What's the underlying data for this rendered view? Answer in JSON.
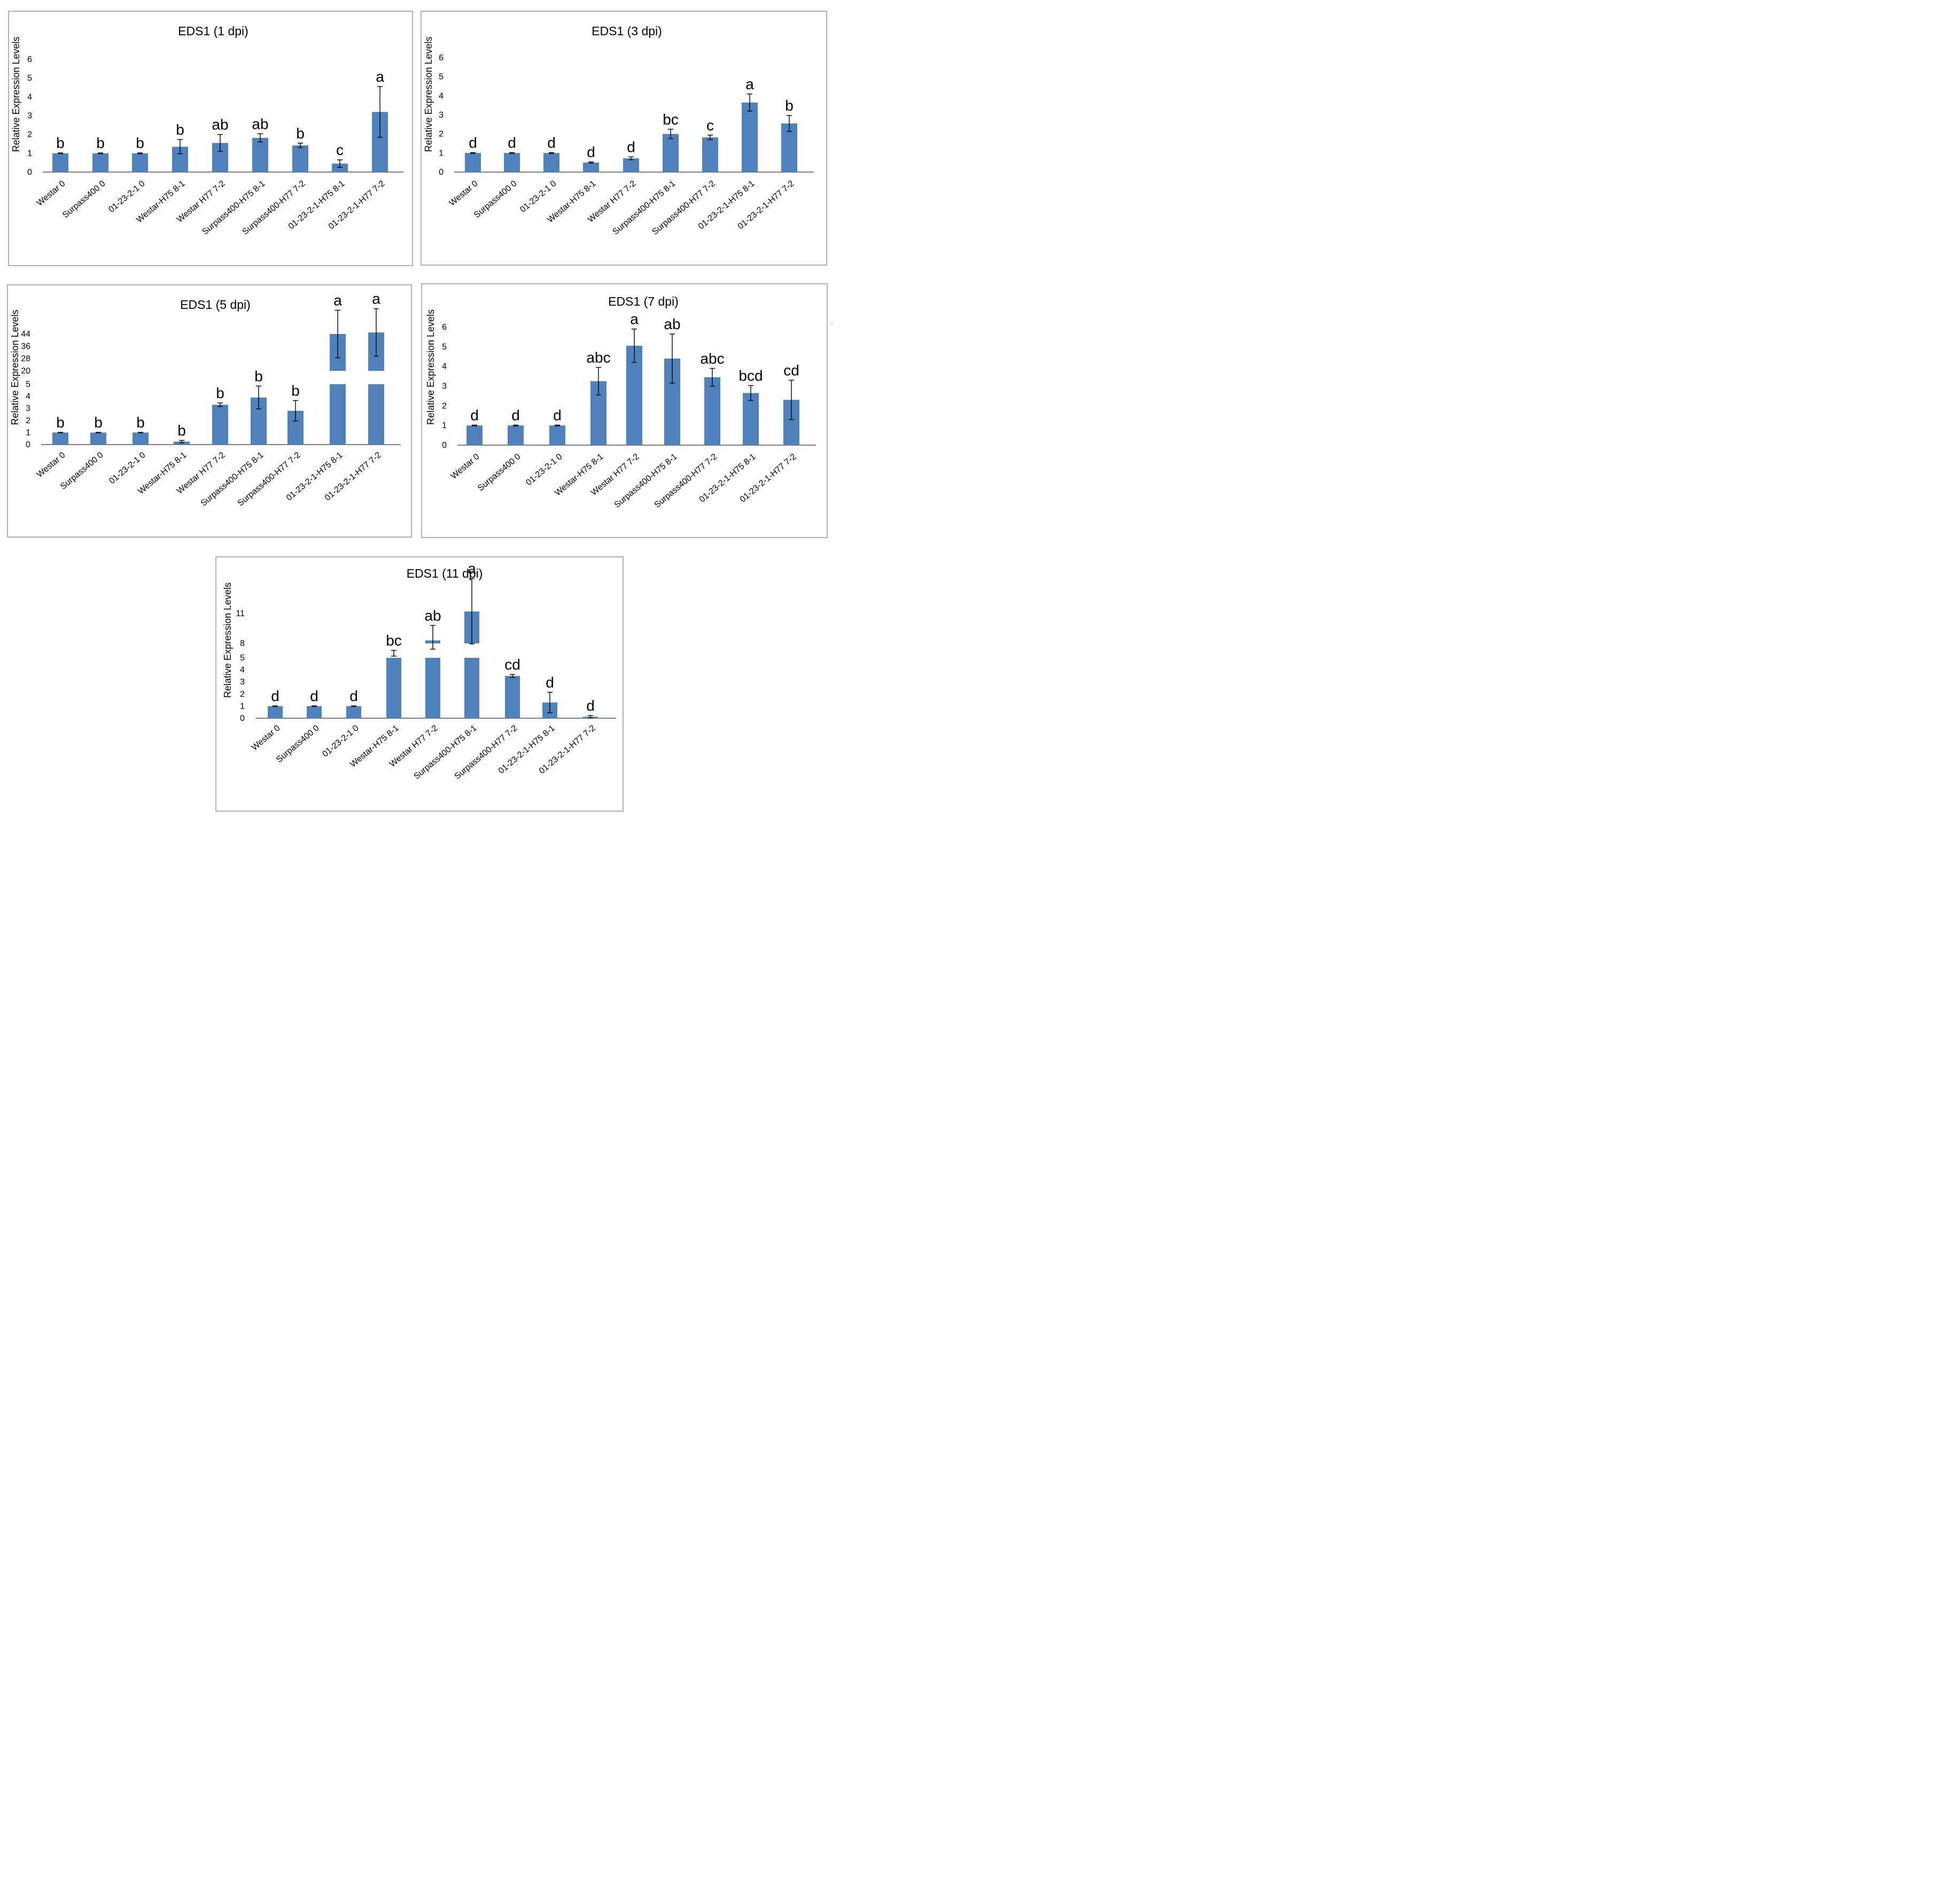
{
  "chart_data": [
    {
      "type": "bar",
      "title": "EDS1 (1 dpi)",
      "ylabel": "Relative Expression Levels",
      "xlabel": "",
      "ylim": [
        0,
        6
      ],
      "yticks": [
        "0",
        "1",
        "2",
        "3",
        "4",
        "5",
        "6"
      ],
      "categories": [
        "Westar 0",
        "Surpass400 0",
        "01-23-2-1 0",
        "Westar-H75 8-1",
        "Westar H77 7-2",
        "Surpass400-H75 8-1",
        "Surpass400-H77 7-2",
        "01-23-2-1-H75 8-1",
        "01-23-2-1-H77 7-2"
      ],
      "values": [
        1.0,
        1.0,
        1.0,
        1.35,
        1.55,
        1.82,
        1.42,
        0.45,
        3.2
      ],
      "errors": [
        0.02,
        0.02,
        0.02,
        0.38,
        0.45,
        0.22,
        0.12,
        0.2,
        1.35
      ],
      "labels": [
        "b",
        "b",
        "b",
        "b",
        "ab",
        "ab",
        "b",
        "c",
        "a"
      ]
    },
    {
      "type": "bar",
      "title": "EDS1 (3 dpi)",
      "ylabel": "Relative Expression Levels",
      "xlabel": "",
      "ylim": [
        0,
        6
      ],
      "yticks": [
        "0",
        "1",
        "2",
        "3",
        "4",
        "5",
        "6"
      ],
      "categories": [
        "Westar 0",
        "Surpass400 0",
        "01-23-2-1 0",
        "Westar-H75 8-1",
        "Westar H77 7-2",
        "Surpass400-H75 8-1",
        "Surpass400-H77 7-2",
        "01-23-2-1-H75 8-1",
        "01-23-2-1-H77 7-2"
      ],
      "values": [
        1.0,
        1.0,
        1.0,
        0.5,
        0.72,
        2.0,
        1.82,
        3.65,
        2.55
      ],
      "errors": [
        0.02,
        0.02,
        0.02,
        0.03,
        0.08,
        0.25,
        0.12,
        0.45,
        0.42
      ],
      "labels": [
        "d",
        "d",
        "d",
        "d",
        "d",
        "bc",
        "c",
        "a",
        "b"
      ]
    },
    {
      "type": "bar",
      "title": "EDS1 (5 dpi)",
      "ylabel": "Relative Expression Levels",
      "xlabel": "",
      "ylim": [
        0,
        44
      ],
      "axis_break": "between 5 and 20",
      "yticks": [
        "0",
        "1",
        "2",
        "3",
        "4",
        "5",
        "20",
        "28",
        "36",
        "44"
      ],
      "categories": [
        "Westar 0",
        "Surpass400 0",
        "01-23-2-1 0",
        "Westar-H75 8-1",
        "Westar H77 7-2",
        "Surpass400-H75 8-1",
        "Surpass400-H77 7-2",
        "01-23-2-1-H75 8-1",
        "01-23-2-1-H77 7-2"
      ],
      "values": [
        1.0,
        1.0,
        1.0,
        0.25,
        3.3,
        3.9,
        2.8,
        44,
        45
      ],
      "errors": [
        0.02,
        0.02,
        0.02,
        0.1,
        0.15,
        0.95,
        0.85,
        15.5,
        15.5
      ],
      "labels": [
        "b",
        "b",
        "b",
        "b",
        "b",
        "b",
        "b",
        "a",
        "a"
      ]
    },
    {
      "type": "bar",
      "title": "EDS1 (7 dpi)",
      "ylabel": "Relative Expression Levels",
      "xlabel": "",
      "ylim": [
        0,
        6
      ],
      "yticks": [
        "0",
        "1",
        "2",
        "3",
        "4",
        "5",
        "6"
      ],
      "categories": [
        "Westar 0",
        "Surpass400 0",
        "01-23-2-1 0",
        "Westar-H75 8-1",
        "Westar H77 7-2",
        "Surpass400-H75 8-1",
        "Surpass400-H77 7-2",
        "01-23-2-1-H75 8-1",
        "01-23-2-1-H77 7-2"
      ],
      "values": [
        1.0,
        1.0,
        1.0,
        3.25,
        5.05,
        4.4,
        3.45,
        2.65,
        2.3
      ],
      "errors": [
        0.02,
        0.02,
        0.02,
        0.7,
        0.85,
        1.25,
        0.45,
        0.38,
        1.0
      ],
      "labels": [
        "d",
        "d",
        "d",
        "abc",
        "a",
        "ab",
        "abc",
        "bcd",
        "cd"
      ]
    },
    {
      "type": "bar",
      "title": "EDS1 (11 dpi)",
      "ylabel": "Relative Expression Levels",
      "xlabel": "",
      "ylim": [
        0,
        11
      ],
      "axis_break": "between 5 and 8",
      "yticks": [
        "0",
        "1",
        "2",
        "3",
        "4",
        "5",
        "8",
        "11"
      ],
      "categories": [
        "Westar 0",
        "Surpass400 0",
        "01-23-2-1 0",
        "Westar-H75 8-1",
        "Westar H77 7-2",
        "Surpass400-H75 8-1",
        "Surpass400-H77 7-2",
        "01-23-2-1-H75 8-1",
        "01-23-2-1-H77 7-2"
      ],
      "values": [
        1.0,
        1.0,
        1.0,
        5.95,
        8.3,
        11.2,
        3.5,
        1.3,
        0.12
      ],
      "errors": [
        0.02,
        0.02,
        0.02,
        0.6,
        1.5,
        3.3,
        0.12,
        0.85,
        0.1
      ],
      "labels": [
        "d",
        "d",
        "d",
        "bc",
        "ab",
        "a",
        "cd",
        "d",
        "d"
      ]
    }
  ],
  "corner_mark": "."
}
